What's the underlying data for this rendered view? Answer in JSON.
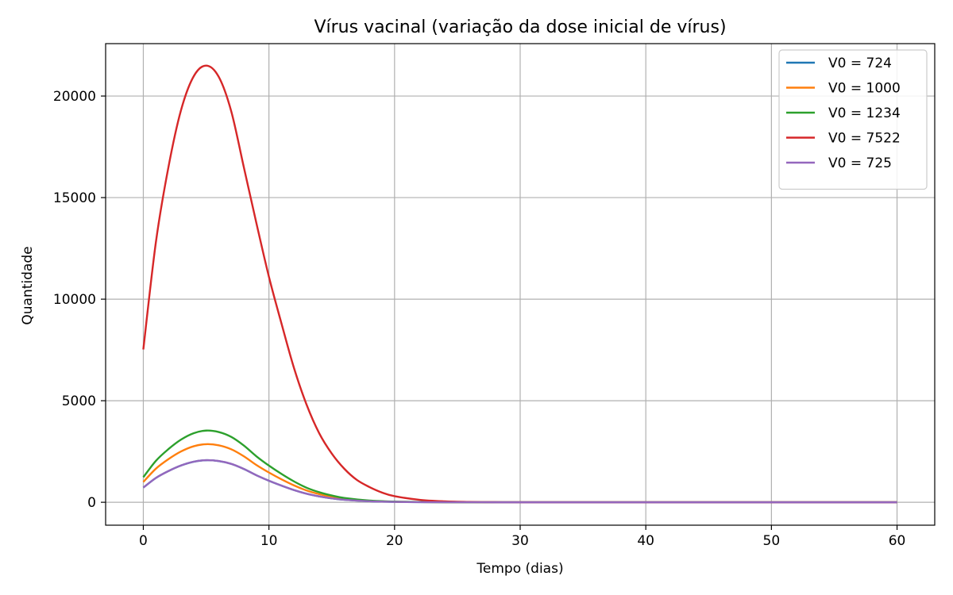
{
  "chart_data": {
    "type": "line",
    "title": "Vírus vacinal (variação da dose inicial de vírus)",
    "xlabel": "Tempo (dias)",
    "ylabel": "Quantidade",
    "xlim": [
      -3,
      63
    ],
    "ylim": [
      -1128,
      22580
    ],
    "xticks": [
      0,
      10,
      20,
      30,
      40,
      50,
      60
    ],
    "yticks": [
      0,
      5000,
      10000,
      15000,
      20000
    ],
    "grid": true,
    "legend_position": "top-right",
    "series": [
      {
        "name": "V0 = 724",
        "color": "#1f77b4",
        "x": [
          0,
          1,
          2,
          3,
          4,
          5,
          6,
          7,
          8,
          9,
          10,
          11,
          12,
          13,
          14,
          15,
          16,
          18,
          20,
          22,
          24,
          26,
          28,
          30,
          35,
          40,
          45,
          50,
          55,
          60
        ],
        "y": [
          724,
          1197,
          1536,
          1810,
          1995,
          2070,
          2030,
          1890,
          1640,
          1330,
          1060,
          820,
          600,
          420,
          290,
          195,
          125,
          50,
          20,
          8,
          3,
          1,
          0,
          0,
          0,
          0,
          0,
          0,
          0,
          0
        ]
      },
      {
        "name": "V0 = 1000",
        "color": "#ff7f0e",
        "x": [
          0,
          1,
          2,
          3,
          4,
          5,
          6,
          7,
          8,
          9,
          10,
          11,
          12,
          13,
          14,
          15,
          16,
          18,
          20,
          22,
          24,
          26,
          28,
          30,
          35,
          40,
          45,
          50,
          55,
          60
        ],
        "y": [
          1000,
          1653,
          2122,
          2500,
          2756,
          2860,
          2805,
          2610,
          2265,
          1835,
          1464,
          1130,
          830,
          580,
          400,
          270,
          172,
          69,
          28,
          11,
          4,
          1,
          0,
          0,
          0,
          0,
          0,
          0,
          0,
          0
        ]
      },
      {
        "name": "V0 = 1234",
        "color": "#2ca02c",
        "x": [
          0,
          1,
          2,
          3,
          4,
          5,
          6,
          7,
          8,
          9,
          10,
          11,
          12,
          13,
          14,
          15,
          16,
          18,
          20,
          22,
          24,
          26,
          28,
          30,
          35,
          40,
          45,
          50,
          55,
          60
        ],
        "y": [
          1234,
          2040,
          2618,
          3085,
          3400,
          3530,
          3460,
          3220,
          2795,
          2265,
          1806,
          1395,
          1025,
          715,
          495,
          333,
          213,
          85,
          34,
          14,
          5,
          2,
          0,
          0,
          0,
          0,
          0,
          0,
          0,
          0
        ]
      },
      {
        "name": "V0 = 7522",
        "color": "#d62728",
        "x": [
          0,
          1,
          2,
          3,
          4,
          5,
          6,
          7,
          8,
          9,
          10,
          11,
          12,
          13,
          14,
          15,
          16,
          17,
          18,
          19,
          20,
          22,
          24,
          26,
          28,
          30,
          35,
          40,
          45,
          50,
          55,
          60
        ],
        "y": [
          7522,
          12800,
          16500,
          19300,
          20960,
          21500,
          20950,
          19250,
          16500,
          13750,
          11100,
          8800,
          6600,
          4800,
          3400,
          2400,
          1650,
          1100,
          750,
          480,
          300,
          120,
          45,
          15,
          5,
          0,
          0,
          0,
          0,
          0,
          0,
          0
        ]
      },
      {
        "name": "V0 = 725",
        "color": "#9467bd",
        "x": [
          0,
          1,
          2,
          3,
          4,
          5,
          6,
          7,
          8,
          9,
          10,
          11,
          12,
          13,
          14,
          15,
          16,
          18,
          20,
          22,
          24,
          26,
          28,
          30,
          35,
          40,
          45,
          50,
          55,
          60
        ],
        "y": [
          725,
          1198,
          1538,
          1812,
          1997,
          2072,
          2032,
          1892,
          1642,
          1331,
          1061,
          821,
          601,
          421,
          291,
          195,
          125,
          50,
          20,
          8,
          3,
          1,
          0,
          0,
          0,
          0,
          0,
          0,
          0,
          0
        ]
      }
    ]
  }
}
